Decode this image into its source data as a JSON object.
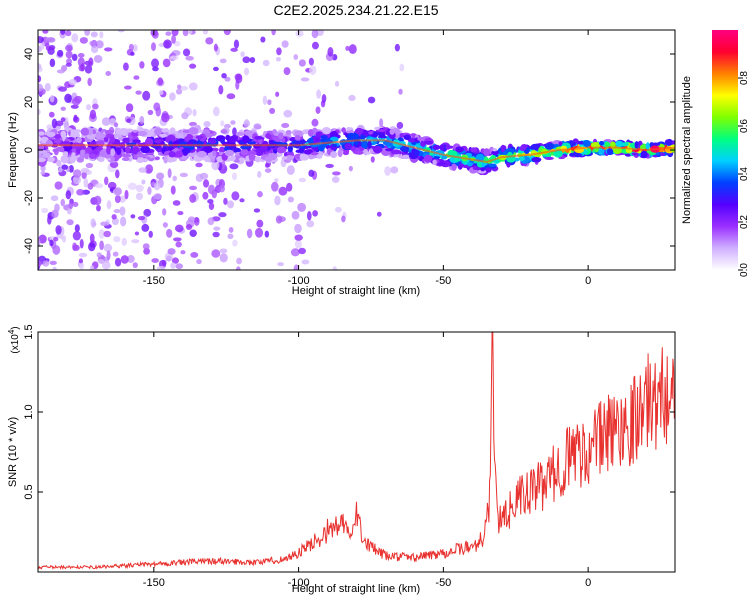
{
  "title": "C2E2.2025.234.21.22.E15",
  "colors": {
    "snr_line": "#e8322f",
    "frame": "#000000"
  },
  "chart_data": [
    {
      "type": "heatmap",
      "title": "C2E2.2025.234.21.22.E15",
      "xlabel": "Height of straight line (km)",
      "ylabel": "Frequency (Hz)",
      "xlim": [
        -190,
        30
      ],
      "ylim": [
        -50,
        50
      ],
      "x_ticks": [
        -150,
        -100,
        -50,
        0
      ],
      "y_ticks": [
        -40,
        -20,
        0,
        20,
        40
      ],
      "colorbar": {
        "label": "Normalized spectral amplitude",
        "range": [
          0,
          1
        ],
        "ticks": [
          "0.0",
          "0.2",
          "0.4",
          "0.6",
          "0.8"
        ],
        "tick_values": [
          0.0,
          0.2,
          0.4,
          0.6,
          0.8
        ],
        "colormap": [
          "#ffffff",
          "#d0b0ff",
          "#9a30ff",
          "#5500ff",
          "#0040ff",
          "#00d0ff",
          "#00ff80",
          "#80ff00",
          "#ffff00",
          "#ff8000",
          "#ff0030",
          "#ff0080"
        ]
      },
      "ridge": {
        "x": [
          -190,
          -170,
          -150,
          -130,
          -110,
          -100,
          -90,
          -80,
          -70,
          -60,
          -50,
          -40,
          -35,
          -30,
          -20,
          -10,
          0,
          10,
          20,
          30
        ],
        "y": [
          2,
          2,
          2,
          2,
          2,
          2,
          3,
          4,
          4,
          1,
          -2,
          -4,
          -5,
          -3,
          -2,
          0,
          1,
          1,
          0,
          1
        ],
        "peak_amplitude": [
          0.2,
          0.25,
          0.3,
          0.35,
          0.3,
          0.35,
          0.45,
          0.45,
          0.45,
          0.5,
          0.55,
          0.6,
          0.6,
          0.65,
          0.7,
          0.8,
          0.9,
          0.95,
          0.95,
          0.9
        ]
      }
    },
    {
      "type": "line",
      "xlabel": "Height of straight line (km)",
      "ylabel": "SNR (10 * v/v)",
      "y_scale_label": "(x10",
      "y_scale_exponent": "4",
      "y_scale_suffix": ")",
      "xlim": [
        -190,
        30
      ],
      "ylim": [
        0,
        1.5
      ],
      "x_ticks": [
        -150,
        -100,
        -50,
        0
      ],
      "y_ticks": [
        0.5,
        1.0,
        1.5
      ],
      "y_tick_labels": [
        "0.5",
        "1.0",
        "1.5"
      ],
      "series": [
        {
          "x": [
            -190,
            -170,
            -150,
            -130,
            -115,
            -105,
            -100,
            -95,
            -90,
            -85,
            -82,
            -80,
            -78,
            -75,
            -70,
            -60,
            -50,
            -40,
            -36,
            -34,
            -33,
            -32,
            -31,
            -30,
            -25,
            -20,
            -15,
            -10,
            -5,
            0,
            5,
            10,
            15,
            20,
            25,
            30
          ],
          "y": [
            0.03,
            0.03,
            0.05,
            0.07,
            0.06,
            0.08,
            0.12,
            0.18,
            0.26,
            0.3,
            0.22,
            0.35,
            0.25,
            0.15,
            0.1,
            0.09,
            0.12,
            0.16,
            0.22,
            0.45,
            1.5,
            0.6,
            0.35,
            0.3,
            0.45,
            0.5,
            0.55,
            0.65,
            0.75,
            0.75,
            0.85,
            0.9,
            0.95,
            1.05,
            1.1,
            1.15
          ]
        }
      ]
    }
  ]
}
